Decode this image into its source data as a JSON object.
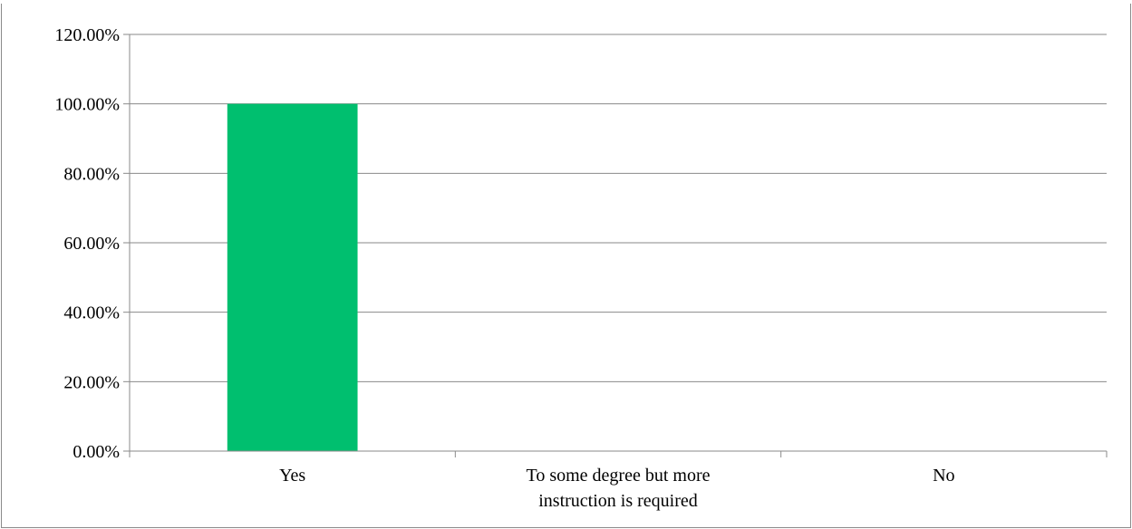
{
  "chart_data": {
    "type": "bar",
    "categories": [
      [
        "Yes"
      ],
      [
        "To some degree but more",
        "instruction is required"
      ],
      [
        "No"
      ]
    ],
    "values": [
      100,
      0,
      0
    ],
    "ylim": [
      0,
      120
    ],
    "ytick_step": 20,
    "ytick_format": "percent_2dp",
    "grid": true,
    "bar_color": "#00bf6f",
    "gridline_color": "#8a8a8a",
    "title": "",
    "xlabel": "",
    "ylabel": ""
  }
}
